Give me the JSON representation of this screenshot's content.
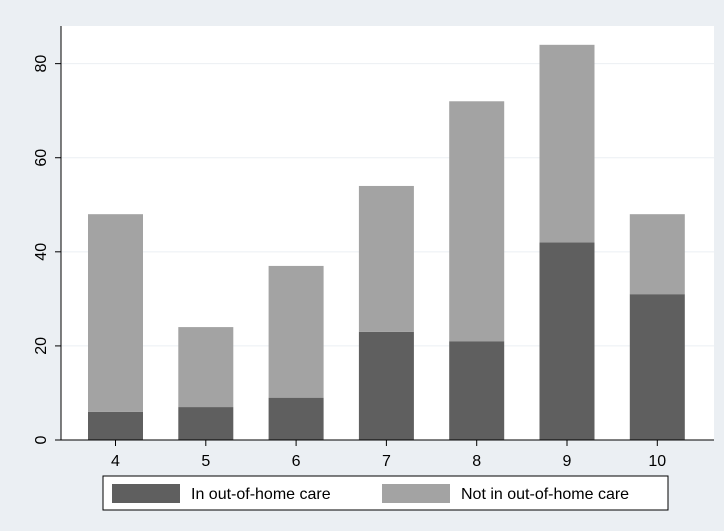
{
  "chart_data": {
    "type": "bar",
    "stacked": true,
    "categories": [
      "4",
      "5",
      "6",
      "7",
      "8",
      "9",
      "10"
    ],
    "series": [
      {
        "name": "In out-of-home care",
        "values": [
          6,
          7,
          9,
          23,
          21,
          42,
          31
        ],
        "color": "#5f5f5f"
      },
      {
        "name": "Not in out-of-home care",
        "values": [
          42,
          17,
          28,
          31,
          51,
          42,
          17
        ],
        "color": "#a3a3a3"
      }
    ],
    "totals": [
      48,
      24,
      37,
      54,
      72,
      84,
      48
    ],
    "ylim": [
      0,
      88
    ],
    "yticks": [
      0,
      20,
      40,
      60,
      80
    ],
    "grid": true,
    "legend_position": "bottom",
    "plot_background": "#ffffff",
    "page_background": "#ebeff3",
    "gridline_color": "#ebeff3"
  }
}
